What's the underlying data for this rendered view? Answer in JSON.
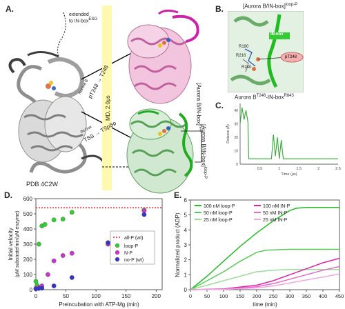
{
  "panels": {
    "A": {
      "letter": "A.",
      "extended_text": "extended",
      "extended_target": "to IN-box",
      "extended_sup": "ESG",
      "pdb_label": "PDB 4C2W",
      "aurora_b_label": "Aurora B",
      "arrow1_label": "pT248 → T248",
      "ibox_label": "IN-box",
      "arrow2_label": "TSS → TSpSp",
      "md_label": "MD, 2.0μs",
      "label_np": "[Aurora B/IN-box]",
      "label_np_sup": "N-P",
      "label_loopp": "[Aurora B/IN-box]",
      "label_loopp_sup": "loop-P"
    },
    "B": {
      "letter": "B.",
      "title": "[Aurora B/IN-box]",
      "title_sup": "loop-P",
      "residues": [
        "R190",
        "R216",
        "R240"
      ],
      "green_tag": "IN-box",
      "pink_tag": "pT248"
    },
    "C": {
      "letter": "C.",
      "title": "Aurora B",
      "title_sup1": "T248",
      "title_mid": "-IN-box",
      "title_sup2": "R843",
      "ylabel": "Distance (Å)",
      "xlabel": "Time (μs)",
      "yticks": [
        "40",
        "30",
        "20",
        "10",
        "0"
      ],
      "xticks": [
        "0.5",
        "1",
        "1.5",
        "2",
        "2.5"
      ]
    },
    "D": {
      "letter": "D.",
      "ylabel1": "Initial velocity",
      "ylabel2": "(μM substrate/min/μM enzyme)",
      "xlabel": "Preincubation with ATP-Mg (min)"
    },
    "E": {
      "letter": "E.",
      "ylabel": "Normalized product (ADP)",
      "xlabel": "time (min)"
    }
  },
  "chart_data": [
    {
      "type": "scatter",
      "panel": "D",
      "xlabel": "Preincubation with ATP-Mg (min)",
      "ylabel": "Initial velocity (μM substrate/min/μM enzyme)",
      "xlim": [
        0,
        210
      ],
      "ylim": [
        0,
        600
      ],
      "xticks": [
        0,
        50,
        100,
        150,
        200
      ],
      "yticks": [
        0,
        100,
        200,
        300,
        400,
        500,
        600
      ],
      "reference_line": {
        "name": "all-P (wt)",
        "y": 540,
        "color": "#e02020"
      },
      "legend_position": "center-right",
      "series": [
        {
          "name": "loop-P",
          "color": "#33cc33",
          "x": [
            0,
            2,
            5,
            10,
            15,
            30,
            45,
            60,
            180
          ],
          "y": [
            55,
            30,
            300,
            420,
            430,
            460,
            465,
            510,
            525
          ]
        },
        {
          "name": "N-P",
          "color": "#cc33cc",
          "x": [
            0,
            5,
            10,
            20,
            30,
            45,
            60,
            120,
            180
          ],
          "y": [
            10,
            15,
            25,
            100,
            190,
            225,
            240,
            300,
            520
          ]
        },
        {
          "name": "no-P (wt)",
          "color": "#3333cc",
          "x": [
            0,
            5,
            10,
            30,
            60,
            120,
            180
          ],
          "y": [
            5,
            8,
            10,
            25,
            80,
            310,
            495
          ]
        }
      ]
    },
    {
      "type": "line",
      "panel": "E",
      "xlabel": "time (min)",
      "ylabel": "Normalized product (ADP)",
      "xlim": [
        0,
        450
      ],
      "ylim": [
        0,
        6
      ],
      "xticks": [
        0,
        50,
        100,
        150,
        200,
        250,
        300,
        350,
        400,
        450
      ],
      "yticks": [
        0,
        1,
        2,
        3,
        4,
        5,
        6
      ],
      "series": [
        {
          "name": "100 nM loop-P",
          "color": "#22bb22",
          "style": "solid",
          "x": [
            0,
            50,
            100,
            150,
            200,
            250,
            300,
            320,
            350,
            400,
            450
          ],
          "y": [
            0,
            0.9,
            1.9,
            2.9,
            3.8,
            4.6,
            5.3,
            5.45,
            5.5,
            5.5,
            5.5
          ]
        },
        {
          "name": "50 nM loop-P",
          "color": "#55cc55",
          "style": "solid",
          "x": [
            0,
            50,
            100,
            150,
            200,
            230,
            300,
            400,
            450
          ],
          "y": [
            0,
            0.6,
            1.2,
            1.9,
            2.5,
            2.65,
            2.7,
            2.7,
            2.7
          ]
        },
        {
          "name": "25 nM loop-P",
          "color": "#99dd99",
          "style": "solid",
          "x": [
            0,
            50,
            100,
            150,
            200,
            250,
            300,
            400,
            450
          ],
          "y": [
            0,
            0.3,
            0.6,
            0.9,
            1.2,
            1.3,
            1.35,
            1.35,
            1.35
          ]
        },
        {
          "name": "100 nM IN-P",
          "color": "#dd22aa",
          "style": "solid",
          "x": [
            0,
            100,
            200,
            250,
            300,
            350,
            400,
            450
          ],
          "y": [
            0,
            0.05,
            0.3,
            0.6,
            1.0,
            1.4,
            1.8,
            2.1
          ]
        },
        {
          "name": "50 nM IN-P",
          "color": "#e866c8",
          "style": "solid",
          "x": [
            0,
            100,
            200,
            250,
            300,
            350,
            400,
            450
          ],
          "y": [
            0,
            0.03,
            0.2,
            0.4,
            0.7,
            1.0,
            1.3,
            1.55
          ]
        },
        {
          "name": "25 nM IN-P",
          "color": "#f0a8e0",
          "style": "solid",
          "x": [
            0,
            100,
            200,
            250,
            300,
            350,
            400,
            450
          ],
          "y": [
            0,
            0.02,
            0.12,
            0.25,
            0.45,
            0.65,
            0.85,
            1.05
          ]
        }
      ]
    },
    {
      "type": "line",
      "panel": "C",
      "xlabel": "Time (μs)",
      "ylabel": "Distance (Å)",
      "xlim": [
        0,
        2.5
      ],
      "ylim": [
        0,
        45
      ],
      "xticks": [
        0.5,
        1,
        1.5,
        2,
        2.5
      ],
      "yticks": [
        0,
        10,
        20,
        30,
        40
      ],
      "series": [
        {
          "name": "",
          "color": "#33aa33",
          "x": [
            0,
            0.05,
            0.1,
            0.15,
            0.2,
            0.22,
            0.3,
            0.5,
            0.8,
            0.85,
            0.9,
            0.95,
            1.0,
            1.05,
            1.1,
            1.2,
            1.5,
            2.0,
            2.5
          ],
          "y": [
            30,
            42,
            33,
            40,
            31,
            4,
            4,
            4,
            4,
            22,
            6,
            20,
            4,
            18,
            4,
            4,
            4,
            4,
            4
          ]
        }
      ]
    }
  ]
}
